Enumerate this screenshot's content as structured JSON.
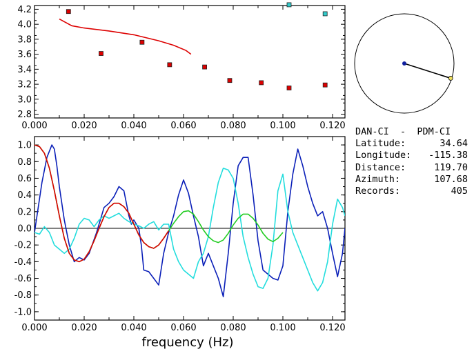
{
  "chart_data": [
    {
      "type": "scatter",
      "title": "",
      "xlabel": "",
      "ylabel": "",
      "xlim": [
        0.0,
        0.125
      ],
      "ylim": [
        2.75,
        4.25
      ],
      "x_ticks": [
        "0.000",
        "0.020",
        "0.040",
        "0.060",
        "0.080",
        "0.100",
        "0.120"
      ],
      "y_ticks": [
        "2.8",
        "3.0",
        "3.2",
        "3.4",
        "3.6",
        "3.8",
        "4.0",
        "4.2"
      ],
      "series": [
        {
          "color": "#dd0000",
          "marker": "square",
          "x": [
            0.0137,
            0.0268,
            0.0433,
            0.0544,
            0.0685,
            0.0786,
            0.0913,
            0.1025,
            0.117
          ],
          "y": [
            4.17,
            3.61,
            3.76,
            3.46,
            3.43,
            3.25,
            3.22,
            3.15,
            3.19
          ]
        },
        {
          "color": "#33cccc",
          "marker": "square",
          "x": [
            0.1025,
            0.117
          ],
          "y": [
            4.26,
            4.14
          ]
        },
        {
          "color": "#dd0000",
          "marker": "line",
          "x": [
            0.01,
            0.015,
            0.02,
            0.03,
            0.04,
            0.05,
            0.056,
            0.061,
            0.063
          ],
          "y": [
            4.07,
            3.98,
            3.95,
            3.91,
            3.86,
            3.78,
            3.72,
            3.65,
            3.6
          ]
        }
      ]
    },
    {
      "type": "line",
      "title": "",
      "xlabel": "frequency (Hz)",
      "ylabel": "",
      "xlim": [
        0.0,
        0.125
      ],
      "ylim": [
        -1.1,
        1.1
      ],
      "x_ticks": [
        "0.000",
        "0.020",
        "0.040",
        "0.060",
        "0.080",
        "0.100",
        "0.120"
      ],
      "y_ticks": [
        "1.0",
        "0.8",
        "0.6",
        "0.4",
        "0.2",
        "0.0",
        "-0.2",
        "-0.4",
        "-0.6",
        "-0.8",
        "-1.0"
      ],
      "series": [
        {
          "color": "#0a1fb8",
          "x": [
            0.0,
            0.003,
            0.005,
            0.007,
            0.008,
            0.009,
            0.01,
            0.012,
            0.014,
            0.016,
            0.018,
            0.02,
            0.022,
            0.025,
            0.028,
            0.03,
            0.032,
            0.034,
            0.036,
            0.038,
            0.039,
            0.04,
            0.042,
            0.043,
            0.044,
            0.046,
            0.048,
            0.05,
            0.052,
            0.054,
            0.056,
            0.058,
            0.06,
            0.062,
            0.064,
            0.066,
            0.068,
            0.07,
            0.072,
            0.074,
            0.076,
            0.078,
            0.08,
            0.082,
            0.084,
            0.086,
            0.088,
            0.09,
            0.092,
            0.094,
            0.096,
            0.098,
            0.1,
            0.102,
            0.104,
            0.106,
            0.108,
            0.11,
            0.112,
            0.114,
            0.116,
            0.118,
            0.12,
            0.122,
            0.124,
            0.125
          ],
          "y": [
            -0.05,
            0.55,
            0.85,
            1.0,
            0.95,
            0.75,
            0.5,
            0.1,
            -0.2,
            -0.4,
            -0.35,
            -0.38,
            -0.3,
            -0.05,
            0.25,
            0.3,
            0.38,
            0.5,
            0.45,
            0.15,
            0.05,
            0.1,
            0.0,
            -0.2,
            -0.5,
            -0.52,
            -0.6,
            -0.68,
            -0.3,
            -0.05,
            0.15,
            0.4,
            0.58,
            0.42,
            0.15,
            -0.1,
            -0.45,
            -0.3,
            -0.45,
            -0.6,
            -0.82,
            -0.3,
            0.3,
            0.75,
            0.85,
            0.85,
            0.4,
            -0.15,
            -0.5,
            -0.55,
            -0.6,
            -0.62,
            -0.45,
            0.2,
            0.65,
            0.95,
            0.75,
            0.5,
            0.3,
            0.15,
            0.2,
            0.0,
            -0.3,
            -0.58,
            -0.3,
            0.0
          ]
        },
        {
          "color": "#22dddd",
          "x": [
            0.0,
            0.002,
            0.004,
            0.006,
            0.008,
            0.01,
            0.012,
            0.014,
            0.016,
            0.018,
            0.02,
            0.022,
            0.024,
            0.026,
            0.028,
            0.03,
            0.032,
            0.034,
            0.036,
            0.038,
            0.04,
            0.042,
            0.044,
            0.046,
            0.048,
            0.05,
            0.052,
            0.054,
            0.056,
            0.058,
            0.06,
            0.062,
            0.064,
            0.066,
            0.068,
            0.07,
            0.072,
            0.074,
            0.076,
            0.078,
            0.08,
            0.082,
            0.084,
            0.086,
            0.088,
            0.09,
            0.092,
            0.094,
            0.096,
            0.098,
            0.1,
            0.102,
            0.104,
            0.106,
            0.108,
            0.11,
            0.112,
            0.114,
            0.116,
            0.118,
            0.12,
            0.122,
            0.124,
            0.125
          ],
          "y": [
            -0.05,
            -0.07,
            0.02,
            -0.05,
            -0.2,
            -0.25,
            -0.3,
            -0.25,
            -0.12,
            0.05,
            0.12,
            0.1,
            0.02,
            0.1,
            0.15,
            0.12,
            0.15,
            0.18,
            0.12,
            0.08,
            0.05,
            0.03,
            0.0,
            0.05,
            0.08,
            -0.02,
            0.05,
            0.05,
            -0.25,
            -0.4,
            -0.5,
            -0.55,
            -0.6,
            -0.4,
            -0.3,
            -0.1,
            0.25,
            0.55,
            0.72,
            0.7,
            0.6,
            0.3,
            -0.1,
            -0.35,
            -0.55,
            -0.7,
            -0.72,
            -0.6,
            -0.2,
            0.45,
            0.65,
            0.2,
            -0.05,
            -0.2,
            -0.35,
            -0.5,
            -0.65,
            -0.75,
            -0.65,
            -0.4,
            0.05,
            0.35,
            0.25,
            0.15
          ]
        },
        {
          "color": "#22cc22",
          "x": [
            0.0,
            0.002,
            0.004,
            0.006,
            0.008,
            0.01,
            0.012,
            0.014,
            0.016,
            0.018,
            0.02,
            0.022,
            0.024,
            0.026,
            0.028,
            0.03,
            0.032,
            0.034,
            0.036,
            0.038,
            0.04,
            0.042,
            0.044,
            0.046,
            0.048,
            0.05,
            0.052,
            0.054,
            0.056,
            0.058,
            0.06,
            0.062,
            0.064,
            0.066,
            0.068,
            0.07,
            0.072,
            0.074,
            0.076,
            0.078,
            0.08,
            0.082,
            0.084,
            0.086,
            0.088,
            0.09,
            0.092,
            0.094,
            0.096,
            0.098,
            0.1
          ],
          "y": [
            1.0,
            0.98,
            0.9,
            0.72,
            0.45,
            0.15,
            -0.12,
            -0.3,
            -0.38,
            -0.4,
            -0.37,
            -0.28,
            -0.15,
            0.0,
            0.14,
            0.25,
            0.3,
            0.3,
            0.26,
            0.18,
            0.05,
            -0.08,
            -0.17,
            -0.22,
            -0.24,
            -0.2,
            -0.12,
            -0.03,
            0.06,
            0.14,
            0.2,
            0.21,
            0.17,
            0.08,
            -0.02,
            -0.1,
            -0.15,
            -0.17,
            -0.14,
            -0.06,
            0.04,
            0.12,
            0.17,
            0.17,
            0.12,
            0.04,
            -0.06,
            -0.13,
            -0.16,
            -0.12,
            -0.05
          ]
        },
        {
          "color": "#dd0000",
          "x": [
            0.0,
            0.002,
            0.004,
            0.006,
            0.008,
            0.01,
            0.012,
            0.014,
            0.016,
            0.018,
            0.02,
            0.022,
            0.024,
            0.026,
            0.028,
            0.03,
            0.032,
            0.034,
            0.036,
            0.038,
            0.04,
            0.042,
            0.044,
            0.046,
            0.048,
            0.05,
            0.052,
            0.054
          ],
          "y": [
            1.0,
            0.98,
            0.9,
            0.72,
            0.45,
            0.15,
            -0.12,
            -0.3,
            -0.38,
            -0.4,
            -0.37,
            -0.28,
            -0.15,
            0.0,
            0.14,
            0.25,
            0.3,
            0.3,
            0.26,
            0.18,
            0.05,
            -0.08,
            -0.17,
            -0.22,
            -0.24,
            -0.2,
            -0.12,
            -0.03
          ]
        }
      ]
    }
  ],
  "polar": {
    "azimuth_deg": 107.68,
    "needle_length_fraction": 0.98
  },
  "info": {
    "title": "DAN-CI  -  PDM-CI",
    "rows": [
      {
        "label": "Latitude:",
        "value": "34.64"
      },
      {
        "label": "Longitude:",
        "value": "-115.38"
      },
      {
        "label": "Distance:",
        "value": "119.70"
      },
      {
        "label": "Azimuth:",
        "value": "107.68"
      },
      {
        "label": "Records:",
        "value": "405"
      }
    ]
  }
}
